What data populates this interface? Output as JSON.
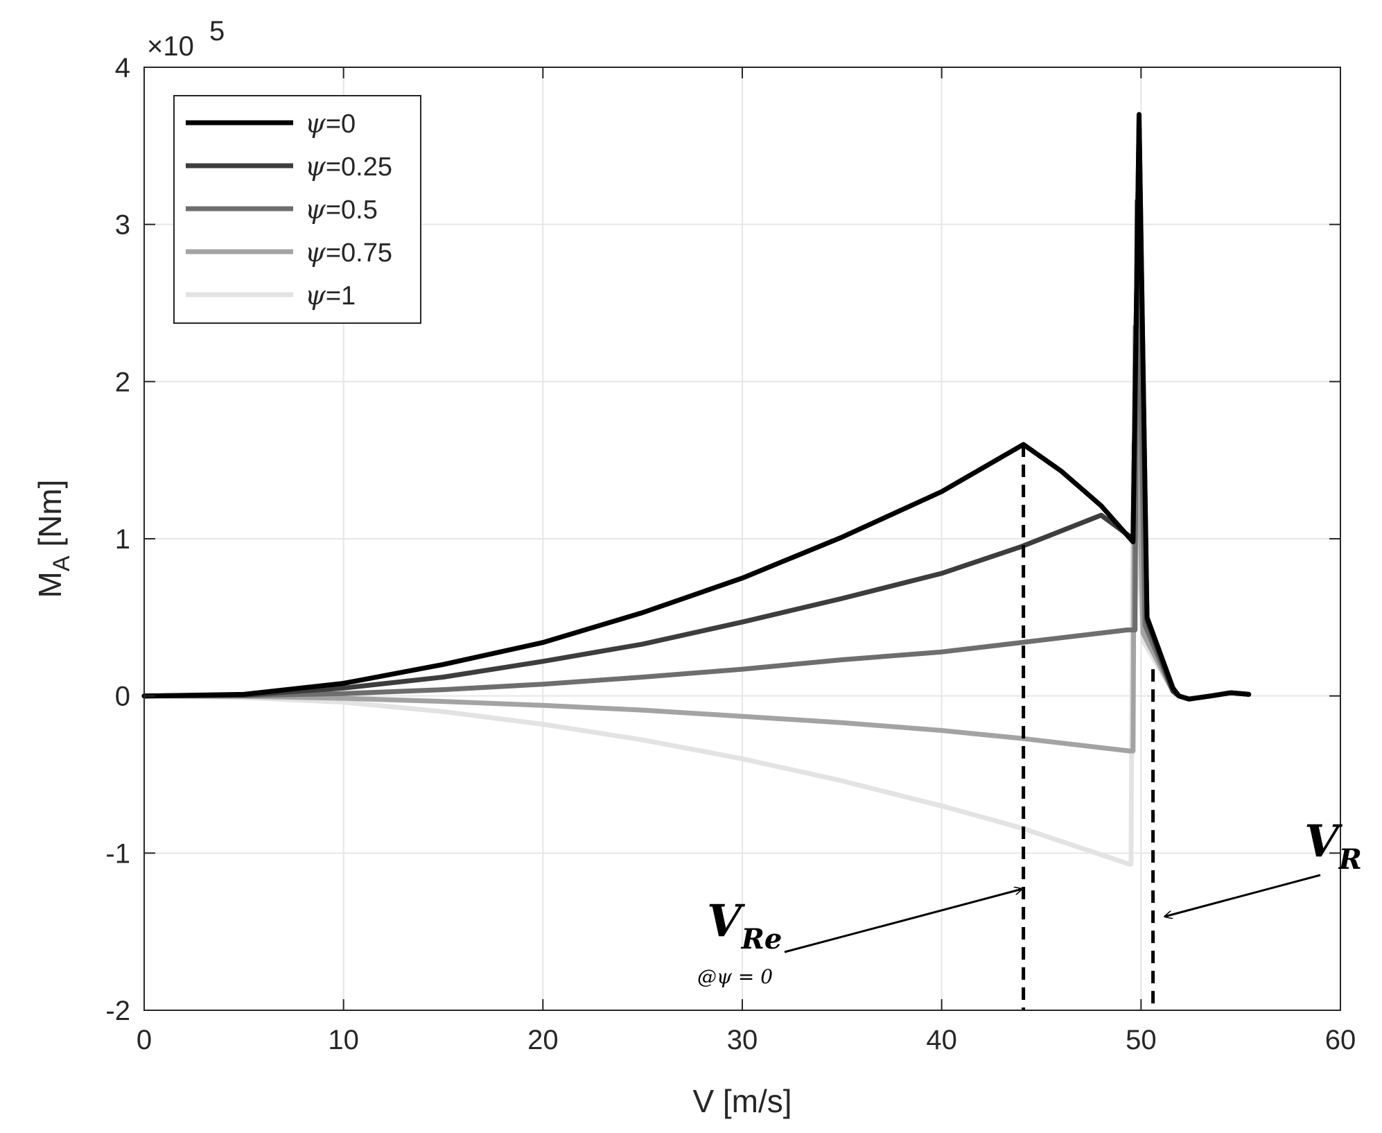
{
  "chart_data": {
    "type": "line",
    "title": "",
    "xlabel": "V [m/s]",
    "ylabel_main": "M",
    "ylabel_sub": "A",
    "ylabel_unit": " [Nm]",
    "y_exponent_prefix": "×10",
    "y_exponent_power": "5",
    "xlim": [
      0,
      60
    ],
    "ylim": [
      -2,
      4
    ],
    "xticks": [
      0,
      10,
      20,
      30,
      40,
      50,
      60
    ],
    "yticks": [
      -2,
      -1,
      0,
      1,
      2,
      3,
      4
    ],
    "xtick_labels": [
      "0",
      "10",
      "20",
      "30",
      "40",
      "50",
      "60"
    ],
    "ytick_labels": [
      "-2",
      "-1",
      "0",
      "1",
      "2",
      "3",
      "4"
    ],
    "grid": true,
    "legend_location": "top-left",
    "series": [
      {
        "name": "ψ=0",
        "legend_symbol": "ψ",
        "legend_value": "=0",
        "color": "#000000",
        "points": [
          [
            0,
            0
          ],
          [
            5,
            0.01
          ],
          [
            10,
            0.08
          ],
          [
            15,
            0.2
          ],
          [
            20,
            0.34
          ],
          [
            25,
            0.53
          ],
          [
            30,
            0.75
          ],
          [
            35,
            1.01
          ],
          [
            40,
            1.3
          ],
          [
            44.1,
            1.6
          ],
          [
            46,
            1.43
          ],
          [
            48,
            1.21
          ],
          [
            49.6,
            0.98
          ],
          [
            49.9,
            3.7
          ],
          [
            50.3,
            0.5
          ],
          [
            51.6,
            0.05
          ],
          [
            51.9,
            0.0
          ],
          [
            52.4,
            -0.02
          ],
          [
            53.5,
            0.0
          ],
          [
            54.5,
            0.02
          ],
          [
            55.4,
            0.01
          ]
        ]
      },
      {
        "name": "ψ=0.25",
        "legend_symbol": "ψ",
        "legend_value": "=0.25",
        "color": "#3d3d3d",
        "points": [
          [
            0,
            0
          ],
          [
            5,
            0.005
          ],
          [
            10,
            0.05
          ],
          [
            15,
            0.12
          ],
          [
            20,
            0.22
          ],
          [
            25,
            0.33
          ],
          [
            30,
            0.47
          ],
          [
            35,
            0.62
          ],
          [
            40,
            0.78
          ],
          [
            44,
            0.95
          ],
          [
            48,
            1.15
          ],
          [
            49.6,
            1.0
          ],
          [
            49.9,
            3.68
          ],
          [
            50.3,
            0.48
          ],
          [
            51.6,
            0.03
          ],
          [
            51.9,
            0.0
          ],
          [
            52.4,
            -0.02
          ],
          [
            53.5,
            0.0
          ],
          [
            54.5,
            0.02
          ],
          [
            55.4,
            0.01
          ]
        ]
      },
      {
        "name": "ψ=0.5",
        "legend_symbol": "ψ",
        "legend_value": "=0.5",
        "color": "#6e6e6e",
        "points": [
          [
            0,
            0
          ],
          [
            5,
            0.002
          ],
          [
            10,
            0.015
          ],
          [
            15,
            0.04
          ],
          [
            20,
            0.075
          ],
          [
            25,
            0.12
          ],
          [
            30,
            0.17
          ],
          [
            35,
            0.23
          ],
          [
            40,
            0.28
          ],
          [
            44,
            0.34
          ],
          [
            49.3,
            0.42
          ],
          [
            49.7,
            0.42
          ],
          [
            49.8,
            3.15
          ],
          [
            50.2,
            0.45
          ],
          [
            51.6,
            0.03
          ],
          [
            51.9,
            0.0
          ],
          [
            52.4,
            -0.02
          ],
          [
            53.5,
            0.0
          ],
          [
            54.5,
            0.02
          ],
          [
            55.4,
            0.01
          ]
        ]
      },
      {
        "name": "ψ=0.75",
        "legend_symbol": "ψ",
        "legend_value": "=0.75",
        "color": "#a3a3a3",
        "points": [
          [
            0,
            0
          ],
          [
            5,
            -0.002
          ],
          [
            10,
            -0.015
          ],
          [
            15,
            -0.035
          ],
          [
            20,
            -0.06
          ],
          [
            25,
            -0.09
          ],
          [
            30,
            -0.13
          ],
          [
            35,
            -0.17
          ],
          [
            40,
            -0.22
          ],
          [
            44,
            -0.27
          ],
          [
            49.4,
            -0.35
          ],
          [
            49.6,
            -0.35
          ],
          [
            49.7,
            2.35
          ],
          [
            50.1,
            0.4
          ],
          [
            51.6,
            0.03
          ],
          [
            51.9,
            0.0
          ],
          [
            52.4,
            -0.02
          ],
          [
            53.5,
            0.0
          ],
          [
            54.5,
            0.02
          ],
          [
            55.4,
            0.01
          ]
        ]
      },
      {
        "name": "ψ=1",
        "legend_symbol": "ψ",
        "legend_value": "=1",
        "color": "#e3e3e3",
        "points": [
          [
            0,
            0
          ],
          [
            5,
            -0.01
          ],
          [
            10,
            -0.04
          ],
          [
            15,
            -0.1
          ],
          [
            20,
            -0.18
          ],
          [
            25,
            -0.28
          ],
          [
            30,
            -0.4
          ],
          [
            35,
            -0.54
          ],
          [
            40,
            -0.7
          ],
          [
            44,
            -0.84
          ],
          [
            49.4,
            -1.07
          ],
          [
            49.5,
            -1.07
          ],
          [
            49.6,
            1.6
          ],
          [
            50.1,
            0.35
          ],
          [
            51.6,
            0.03
          ],
          [
            51.9,
            0.0
          ],
          [
            52.4,
            -0.02
          ],
          [
            53.5,
            0.0
          ],
          [
            54.5,
            0.02
          ],
          [
            55.4,
            0.01
          ]
        ]
      }
    ],
    "annotations": [
      {
        "id": "vre",
        "main": "V",
        "sub": "Re",
        "note": "@ψ = 0",
        "x_line": 44.1,
        "arrow_target_y": -1.22
      },
      {
        "id": "vr",
        "main": "V",
        "sub": "R",
        "x_line": 50.6,
        "arrow_target_y": -1.43
      }
    ]
  }
}
